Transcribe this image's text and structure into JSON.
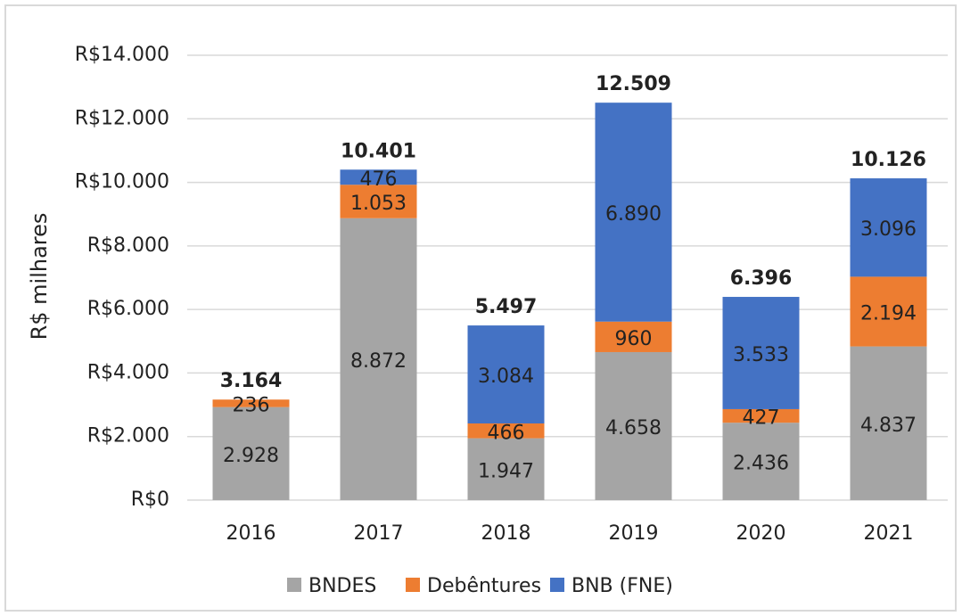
{
  "chart_data": {
    "type": "stacked_bar",
    "y_label": "R$ milhares",
    "categories": [
      "2016",
      "2017",
      "2018",
      "2019",
      "2020",
      "2021"
    ],
    "series": [
      {
        "name": "BNDES",
        "color": "#a5a5a5",
        "values": [
          2928,
          8872,
          1947,
          4658,
          2436,
          4837
        ],
        "value_labels": [
          "2.928",
          "8.872",
          "1.947",
          "4.658",
          "2.436",
          "4.837"
        ]
      },
      {
        "name": "Debêntures",
        "color": "#ed7d31",
        "values": [
          236,
          1053,
          466,
          960,
          427,
          2194
        ],
        "value_labels": [
          "236",
          "1.053",
          "466",
          "960",
          "427",
          "2.194"
        ]
      },
      {
        "name": "BNB (FNE)",
        "color": "#4472c4",
        "values": [
          null,
          476,
          3084,
          6890,
          3533,
          3096
        ],
        "value_labels": [
          null,
          "476",
          "3.084",
          "6.890",
          "3.533",
          "3.096"
        ]
      }
    ],
    "totals": {
      "values": [
        3164,
        10401,
        5497,
        12509,
        6396,
        10126
      ],
      "value_labels": [
        "3.164",
        "10.401",
        "5.497",
        "12.509",
        "6.396",
        "10.126"
      ]
    },
    "ylim": [
      0,
      14000
    ],
    "yticks": [
      {
        "value": 0,
        "label": "R$0"
      },
      {
        "value": 2000,
        "label": "R$2.000"
      },
      {
        "value": 4000,
        "label": "R$4.000"
      },
      {
        "value": 6000,
        "label": "R$6.000"
      },
      {
        "value": 8000,
        "label": "R$8.000"
      },
      {
        "value": 10000,
        "label": "R$10.000"
      },
      {
        "value": 12000,
        "label": "R$12.000"
      },
      {
        "value": 14000,
        "label": "R$14.000"
      }
    ],
    "grid": true,
    "legend": "bottom"
  }
}
